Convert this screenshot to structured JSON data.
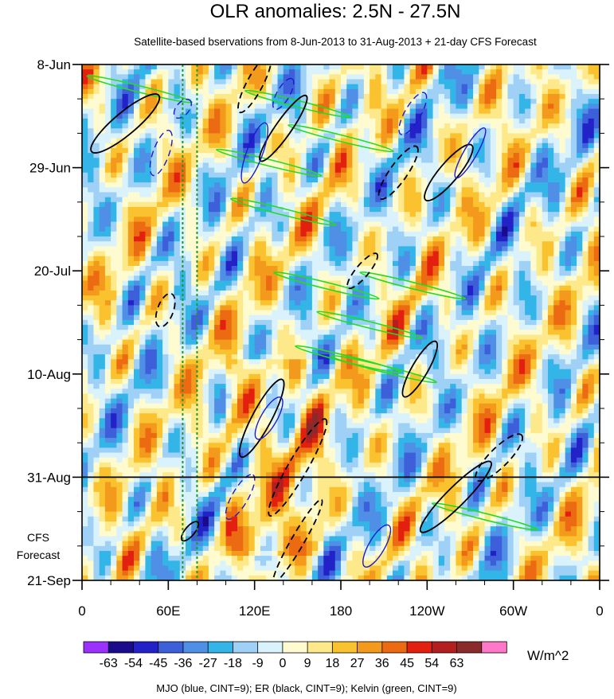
{
  "chart_data": {
    "type": "heatmap",
    "title": "OLR anomalies: 2.5N - 27.5N",
    "subtitle": "Satellite-based bservations from 8-Jun-2013 to 31-Aug-2013 + 21-day CFS Forecast",
    "y_ticks": [
      {
        "label": "8-Jun",
        "day": 0
      },
      {
        "label": "29-Jun",
        "day": 21
      },
      {
        "label": "20-Jul",
        "day": 42
      },
      {
        "label": "10-Aug",
        "day": 63
      },
      {
        "label": "31-Aug",
        "day": 84
      },
      {
        "label": "21-Sep",
        "day": 105
      }
    ],
    "x_ticks": [
      {
        "label": "0",
        "lon": 0
      },
      {
        "label": "60E",
        "lon": 60
      },
      {
        "label": "120E",
        "lon": 120
      },
      {
        "label": "180",
        "lon": 180
      },
      {
        "label": "120W",
        "lon": 240
      },
      {
        "label": "60W",
        "lon": 300
      },
      {
        "label": "0",
        "lon": 360
      }
    ],
    "xlim": [
      0,
      360
    ],
    "ylim_days": [
      0,
      105
    ],
    "observation_end_day": 84,
    "forecast_label_lines": [
      "CFS",
      "Forecast"
    ],
    "reference_longitudes": [
      70,
      80
    ],
    "colorbar": {
      "unit": "W/m^2",
      "levels": [
        "-63",
        "-54",
        "-45",
        "-36",
        "-27",
        "-18",
        "-9",
        "0",
        "9",
        "18",
        "27",
        "36",
        "45",
        "54",
        "63"
      ],
      "colors": [
        "#9b30ff",
        "#1a0a8c",
        "#2222c8",
        "#3d5fd9",
        "#4f8fe6",
        "#33b5e8",
        "#9fd0f5",
        "#d9f2fb",
        "#fffbd0",
        "#fde88a",
        "#f9c22e",
        "#f39a1c",
        "#ec6a12",
        "#e32010",
        "#b41e1e",
        "#8a2a2a",
        "#ff77c8"
      ]
    },
    "legend_note": "MJO (blue, CINT=9); ER (black, CINT=9); Kelvin (green, CINT=9)",
    "contour_colors": {
      "mjo": "#1a1ad0",
      "er": "#000000",
      "kelvin": "#22dd22"
    }
  }
}
